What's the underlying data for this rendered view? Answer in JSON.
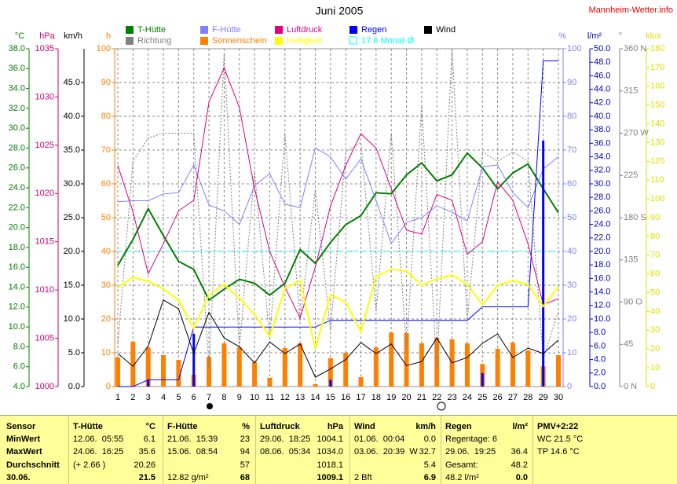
{
  "chart_data": {
    "type": "line",
    "title": "Juni 2005",
    "source": "Mannheim-Wetter.info",
    "grid": true,
    "x": [
      1,
      2,
      3,
      4,
      5,
      6,
      7,
      8,
      9,
      10,
      11,
      12,
      13,
      14,
      15,
      16,
      17,
      18,
      19,
      20,
      21,
      22,
      23,
      24,
      25,
      26,
      27,
      28,
      29,
      30
    ],
    "axes": [
      {
        "label": "°C",
        "color": "#008000",
        "ylim": [
          4,
          38
        ],
        "yticks": [
          {
            "value": 4,
            "label": "4.0"
          },
          {
            "value": 6,
            "label": "6.0"
          },
          {
            "value": 8,
            "label": "8.0"
          },
          {
            "value": 10,
            "label": "10.0"
          },
          {
            "value": 12,
            "label": "12.0"
          },
          {
            "value": 14,
            "label": "14.0"
          },
          {
            "value": 16,
            "label": "16.0"
          },
          {
            "value": 18,
            "label": "18.0"
          },
          {
            "value": 20,
            "label": "20.0"
          },
          {
            "value": 22,
            "label": "22.0"
          },
          {
            "value": 24,
            "label": "24.0"
          },
          {
            "value": 26,
            "label": "26.0"
          },
          {
            "value": 28,
            "label": "28.0"
          },
          {
            "value": 30,
            "label": "30.0"
          },
          {
            "value": 32,
            "label": "32.0"
          },
          {
            "value": 34,
            "label": "34.0"
          },
          {
            "value": 36,
            "label": "36.0"
          },
          {
            "value": 38,
            "label": "38.0"
          }
        ]
      },
      {
        "label": "hPa",
        "color": "#d0006f",
        "ylim": [
          1000,
          1035
        ],
        "yticks": [
          1000,
          1005,
          1010,
          1015,
          1020,
          1025,
          1030,
          1035
        ]
      },
      {
        "label": "km/h",
        "color": "#000000",
        "ylim": [
          0,
          50
        ],
        "yticks": [
          {
            "value": 0,
            "label": "0.0"
          },
          {
            "value": 5,
            "label": "5.0"
          },
          {
            "value": 10,
            "label": "10.0"
          },
          {
            "value": 15,
            "label": "15.0"
          },
          {
            "value": 20,
            "label": "20.0"
          },
          {
            "value": 25,
            "label": "25.0"
          },
          {
            "value": 30,
            "label": "30.0"
          },
          {
            "value": 35,
            "label": "35.0"
          },
          {
            "value": 40,
            "label": "40.0"
          },
          {
            "value": 45,
            "label": "45.0"
          }
        ]
      },
      {
        "label": "h",
        "color": "#ff8000",
        "ylim": [
          0,
          100
        ],
        "yticks": [
          0,
          10,
          20,
          30,
          40,
          50,
          60,
          70,
          80,
          90,
          100
        ],
        "grid": true
      },
      {
        "label": "%",
        "color": "#8080ff",
        "ylim": [
          0,
          100
        ],
        "yticks": [
          0,
          10,
          20,
          30,
          40,
          50,
          60,
          70,
          80,
          90,
          100
        ]
      },
      {
        "label": "l/m²",
        "color": "#0000c0",
        "ylim": [
          0,
          50
        ],
        "yticks": [
          {
            "value": 0,
            "label": "0.0"
          },
          {
            "value": 2,
            "label": "2.0"
          },
          {
            "value": 4,
            "label": "4.0"
          },
          {
            "value": 6,
            "label": "6.0"
          },
          {
            "value": 8,
            "label": "8.0"
          },
          {
            "value": 10,
            "label": "10.0"
          },
          {
            "value": 12,
            "label": "12.0"
          },
          {
            "value": 14,
            "label": "14.0"
          },
          {
            "value": 16,
            "label": "16.0"
          },
          {
            "value": 18,
            "label": "18.0"
          },
          {
            "value": 20,
            "label": "20.0"
          },
          {
            "value": 22,
            "label": "22.0"
          },
          {
            "value": 24,
            "label": "24.0"
          },
          {
            "value": 26,
            "label": "26.0"
          },
          {
            "value": 28,
            "label": "28.0"
          },
          {
            "value": 30,
            "label": "30.0"
          },
          {
            "value": 32,
            "label": "32.0"
          },
          {
            "value": 34,
            "label": "34.0"
          },
          {
            "value": 36,
            "label": "36.0"
          },
          {
            "value": 38,
            "label": "38.0"
          },
          {
            "value": 40,
            "label": "40.0"
          },
          {
            "value": 42,
            "label": "42.0"
          },
          {
            "value": 44,
            "label": "44.0"
          },
          {
            "value": 46,
            "label": "46.0"
          },
          {
            "value": 48,
            "label": "48.0"
          },
          {
            "value": 50,
            "label": "50.0"
          }
        ]
      },
      {
        "label": "°",
        "color": "#808080",
        "ylim": [
          0,
          360
        ],
        "yticks": [
          {
            "value": 0,
            "label": "0 N"
          },
          45,
          {
            "value": 90,
            "label": "90 O"
          },
          135,
          {
            "value": 180,
            "label": "180 S"
          },
          225,
          {
            "value": 270,
            "label": "270 W"
          },
          315,
          {
            "value": 360,
            "label": "360 N"
          }
        ]
      },
      {
        "label": "klux",
        "color": "#e0e000",
        "ylim": [
          0,
          180
        ],
        "yticks": [
          0,
          10,
          20,
          30,
          40,
          50,
          60,
          70,
          80,
          90,
          100,
          110,
          120,
          130,
          140,
          150,
          160,
          170,
          180
        ]
      }
    ],
    "series": [
      {
        "name": "T-Hütte",
        "color": "#008000",
        "kind": "line",
        "width": 2,
        "axis": 0,
        "values": [
          16.2,
          18.8,
          21.9,
          19.2,
          16.6,
          15.8,
          12.7,
          13.8,
          14.8,
          14.4,
          13.2,
          14.4,
          17.8,
          16.4,
          18.5,
          20.3,
          21.2,
          23.5,
          23.4,
          25.3,
          26.5,
          24.7,
          25.3,
          27.5,
          26.0,
          23.9,
          25.5,
          26.4,
          23.9,
          21.5
        ]
      },
      {
        "name": "F-Hütte",
        "color": "#8080ff",
        "kind": "line",
        "width": 1,
        "axis": 4,
        "values": [
          54.7,
          55,
          55,
          57,
          57.4,
          65.6,
          53.7,
          52,
          48,
          59.5,
          63,
          54,
          53,
          70.7,
          68,
          61.4,
          67.4,
          55,
          42.3,
          48.6,
          50,
          53.5,
          51.6,
          49,
          65,
          65.6,
          57.4,
          53,
          64.4,
          68
        ]
      },
      {
        "name": "Luftdruck",
        "color": "#e0007f",
        "kind": "line",
        "width": 1,
        "axis": 1,
        "values": [
          1022.9,
          1018.1,
          1011.7,
          1014.8,
          1018.2,
          1019.3,
          1029.5,
          1033,
          1028.9,
          1020.5,
          1014,
          1010.3,
          1007.1,
          1012.4,
          1018.7,
          1022.9,
          1026.2,
          1024.7,
          1020.5,
          1016.2,
          1015.8,
          1019.9,
          1019.3,
          1013.7,
          1015,
          1021.2,
          1019.3,
          1014.8,
          1008.5,
          1009.1
        ]
      },
      {
        "name": "Regen",
        "color": "#0000ff",
        "kind": "line",
        "width": 1,
        "axis": 5,
        "values": [
          0,
          0,
          1.0,
          1.0,
          1.0,
          8.8,
          8.8,
          8.8,
          8.8,
          8.8,
          8.8,
          8.8,
          8.8,
          8.8,
          9.8,
          9.8,
          9.8,
          9.8,
          9.8,
          9.8,
          9.8,
          9.8,
          9.8,
          9.8,
          11.8,
          11.8,
          11.8,
          11.8,
          48.2,
          48.2
        ],
        "bar_values": [
          null,
          null,
          1.0,
          null,
          null,
          7.8,
          null,
          null,
          null,
          null,
          null,
          null,
          null,
          null,
          1.0,
          null,
          null,
          null,
          null,
          null,
          null,
          null,
          null,
          null,
          2.0,
          null,
          null,
          null,
          36.4,
          null
        ]
      },
      {
        "name": "Wind",
        "color": "#000000",
        "kind": "line",
        "width": 1,
        "axis": 2,
        "values": [
          4.9,
          3,
          6,
          12.8,
          11.5,
          4.9,
          11,
          7.2,
          5.9,
          3.5,
          6.6,
          4.9,
          6.3,
          1.4,
          2.6,
          4,
          6.5,
          4.9,
          6.3,
          3.1,
          3.7,
          7.2,
          3.5,
          4.3,
          6.4,
          7.8,
          4.3,
          5.7,
          4.9,
          6.9
        ]
      },
      {
        "name": "Richtung",
        "color": "#808080",
        "kind": "dotted",
        "width": 1,
        "axis": 6,
        "values": [
          45,
          240,
          265,
          270,
          270,
          270,
          20,
          355,
          40,
          230,
          50,
          270,
          70,
          210,
          60,
          250,
          260,
          80,
          270,
          40,
          300,
          20,
          360,
          70,
          250,
          240,
          250,
          240,
          30,
          80
        ]
      },
      {
        "name": "Sonnenschein",
        "color": "#ff8000",
        "kind": "bar",
        "axis": 3,
        "values": [
          8.6,
          13.3,
          11.6,
          9.3,
          7.9,
          3.5,
          8.8,
          12.8,
          11.6,
          7.2,
          2.6,
          11.4,
          12.8,
          0.7,
          8.4,
          10,
          2.8,
          11.6,
          16,
          15.8,
          12.8,
          14.4,
          14,
          12.8,
          6.7,
          11.2,
          13,
          10.7,
          6,
          9.3
        ]
      },
      {
        "name": "Helligkeit",
        "color": "#ffff00",
        "kind": "line",
        "width": 2,
        "axis": 7,
        "values": [
          52.7,
          58.2,
          56,
          52,
          46,
          31,
          49,
          54.4,
          47,
          38.5,
          26.8,
          52.3,
          56.5,
          20,
          49,
          44.8,
          29.3,
          58.6,
          62.4,
          61.5,
          54,
          57.3,
          59.4,
          54.4,
          43.5,
          54,
          56.5,
          54.4,
          42.7,
          53.2
        ]
      }
    ],
    "reference": {
      "value": 17.6,
      "name": "Monat-Ø",
      "color": "#00ffff",
      "axis": 0
    }
  },
  "summary": {
    "columns": [
      {
        "title": "Sensor",
        "rows": [
          {
            "left": "MinWert"
          },
          {
            "left": "MaxWert"
          },
          {
            "left": "Durchschnitt"
          },
          {
            "left": "30.06."
          }
        ]
      },
      {
        "title": "T-Hütte",
        "unit": "°C",
        "rows": [
          {
            "left": "12.06.  05:55",
            "right": "6.1"
          },
          {
            "left": "24.06.  16:25",
            "right": "35.6"
          },
          {
            "left": "(+ 2.66 )",
            "right": "20.26"
          },
          {
            "right": "21.5"
          }
        ]
      },
      {
        "title": "F-Hütte",
        "unit": "%",
        "rows": [
          {
            "left": "21.06.  15:39",
            "right": "23"
          },
          {
            "left": "15.06.  08:54",
            "right": "94"
          },
          {
            "right": "57"
          },
          {
            "left": "12.82 g/m²",
            "right": "68"
          }
        ]
      },
      {
        "title": "Luftdruck",
        "unit": "hPa",
        "rows": [
          {
            "left": "29.06.  18:25",
            "right": "1004.1"
          },
          {
            "left": "08.06.  05:34",
            "right": "1034.0"
          },
          {
            "right": "1018.1"
          },
          {
            "right": "1009.1"
          }
        ]
      },
      {
        "title": "Wind",
        "unit": "km/h",
        "rows": [
          {
            "left": "01.06.  00:04",
            "right": "0.0"
          },
          {
            "left": "03.06.  20:39  W",
            "right": "32.7"
          },
          {
            "right": "5.4"
          },
          {
            "left": "2 Bft",
            "right": "6.9"
          }
        ]
      },
      {
        "title": "Regen",
        "unit": "l/m²",
        "rows": [
          {
            "left": "Regentage: 6"
          },
          {
            "left": "29.06.  19:25",
            "right": "36.4"
          },
          {
            "left": "Gesamt:",
            "right": "48.2"
          },
          {
            "left": "48.2 l/m²",
            "right": "0.0"
          }
        ]
      },
      {
        "title": "PMV+2:22",
        "rows": [
          {
            "left": "WC 21.5 °C"
          },
          {
            "left": "TP 14.6 °C"
          }
        ]
      }
    ]
  }
}
